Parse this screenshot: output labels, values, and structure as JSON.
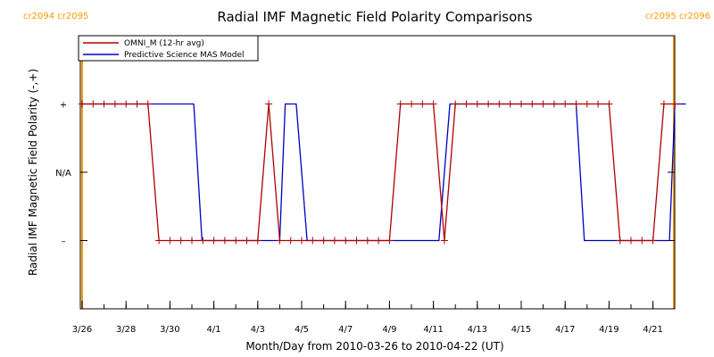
{
  "chart_data": {
    "type": "line",
    "title": "Radial IMF Magnetic Field Polarity Comparisons",
    "xlabel": "Month/Day from 2010-03-26 to 2010-04-22 (UT)",
    "ylabel": "Radial IMF Magnetic Field Polarity (-,+)",
    "xlim": [
      "2010-03-26T00:00",
      "2010-04-22T12:00"
    ],
    "ylim": [
      -2,
      2
    ],
    "y_ticks": [
      {
        "value": 1,
        "label": "+"
      },
      {
        "value": 0,
        "label": "N/A"
      },
      {
        "value": -1,
        "label": "–"
      }
    ],
    "x_ticks": [
      {
        "value": "2010-03-26",
        "label": "3/26"
      },
      {
        "value": "2010-03-28",
        "label": "3/28"
      },
      {
        "value": "2010-03-30",
        "label": "3/30"
      },
      {
        "value": "2010-04-01",
        "label": "4/1"
      },
      {
        "value": "2010-04-03",
        "label": "4/3"
      },
      {
        "value": "2010-04-05",
        "label": "4/5"
      },
      {
        "value": "2010-04-07",
        "label": "4/7"
      },
      {
        "value": "2010-04-09",
        "label": "4/9"
      },
      {
        "value": "2010-04-11",
        "label": "4/11"
      },
      {
        "value": "2010-04-13",
        "label": "4/13"
      },
      {
        "value": "2010-04-15",
        "label": "4/15"
      },
      {
        "value": "2010-04-17",
        "label": "4/17"
      },
      {
        "value": "2010-04-19",
        "label": "4/19"
      },
      {
        "value": "2010-04-21",
        "label": "4/21"
      }
    ],
    "carrington_markers": [
      {
        "time": "2010-03-26T00:00",
        "label": "cr2094 cr2095"
      },
      {
        "time": "2010-04-22T12:00",
        "label": "cr2095 cr2096"
      }
    ],
    "legend_position": "top-left",
    "series": [
      {
        "name": "OMNI_M (12-hr avg)",
        "color": "#b00000",
        "markers": true,
        "x": [
          "2010-03-26T00:00",
          "2010-03-26T12:00",
          "2010-03-27T00:00",
          "2010-03-27T12:00",
          "2010-03-28T00:00",
          "2010-03-28T12:00",
          "2010-03-29T00:00",
          "2010-03-29T12:00",
          "2010-03-30T00:00",
          "2010-03-30T12:00",
          "2010-03-31T00:00",
          "2010-03-31T12:00",
          "2010-04-01T00:00",
          "2010-04-01T12:00",
          "2010-04-02T00:00",
          "2010-04-02T12:00",
          "2010-04-03T00:00",
          "2010-04-03T12:00",
          "2010-04-04T00:00",
          "2010-04-04T12:00",
          "2010-04-05T00:00",
          "2010-04-05T12:00",
          "2010-04-06T00:00",
          "2010-04-06T12:00",
          "2010-04-07T00:00",
          "2010-04-07T12:00",
          "2010-04-08T00:00",
          "2010-04-08T12:00",
          "2010-04-09T00:00",
          "2010-04-09T12:00",
          "2010-04-10T00:00",
          "2010-04-10T12:00",
          "2010-04-11T00:00",
          "2010-04-11T12:00",
          "2010-04-12T00:00",
          "2010-04-12T12:00",
          "2010-04-13T00:00",
          "2010-04-13T12:00",
          "2010-04-14T00:00",
          "2010-04-14T12:00",
          "2010-04-15T00:00",
          "2010-04-15T12:00",
          "2010-04-16T00:00",
          "2010-04-16T12:00",
          "2010-04-17T00:00",
          "2010-04-17T12:00",
          "2010-04-18T00:00",
          "2010-04-18T12:00",
          "2010-04-19T00:00",
          "2010-04-19T12:00",
          "2010-04-20T00:00",
          "2010-04-20T12:00",
          "2010-04-21T00:00",
          "2010-04-21T12:00",
          "2010-04-22T00:00"
        ],
        "y": [
          1,
          1,
          1,
          1,
          1,
          1,
          1,
          -1,
          -1,
          -1,
          -1,
          -1,
          -1,
          -1,
          -1,
          -1,
          -1,
          1,
          -1,
          -1,
          -1,
          -1,
          -1,
          -1,
          -1,
          -1,
          -1,
          -1,
          -1,
          1,
          1,
          1,
          1,
          -1,
          1,
          1,
          1,
          1,
          1,
          1,
          1,
          1,
          1,
          1,
          1,
          1,
          1,
          1,
          1,
          -1,
          -1,
          -1,
          -1,
          1,
          1
        ]
      },
      {
        "name": "Predictive Science MAS Model",
        "color": "#0000c0",
        "markers": false,
        "x": [
          "2010-03-26T00:00",
          "2010-03-31T02:00",
          "2010-03-31T11:00",
          "2010-04-04T00:00",
          "2010-04-04T06:00",
          "2010-04-04T18:00",
          "2010-04-05T06:00",
          "2010-04-11T06:00",
          "2010-04-11T18:00",
          "2010-04-17T12:00",
          "2010-04-17T21:00",
          "2010-04-21T18:00",
          "2010-04-22T00:00",
          "2010-04-22T12:00"
        ],
        "y": [
          1,
          1,
          -1,
          -1,
          1,
          1,
          -1,
          -1,
          1,
          1,
          -1,
          -1,
          1,
          1
        ]
      }
    ]
  }
}
